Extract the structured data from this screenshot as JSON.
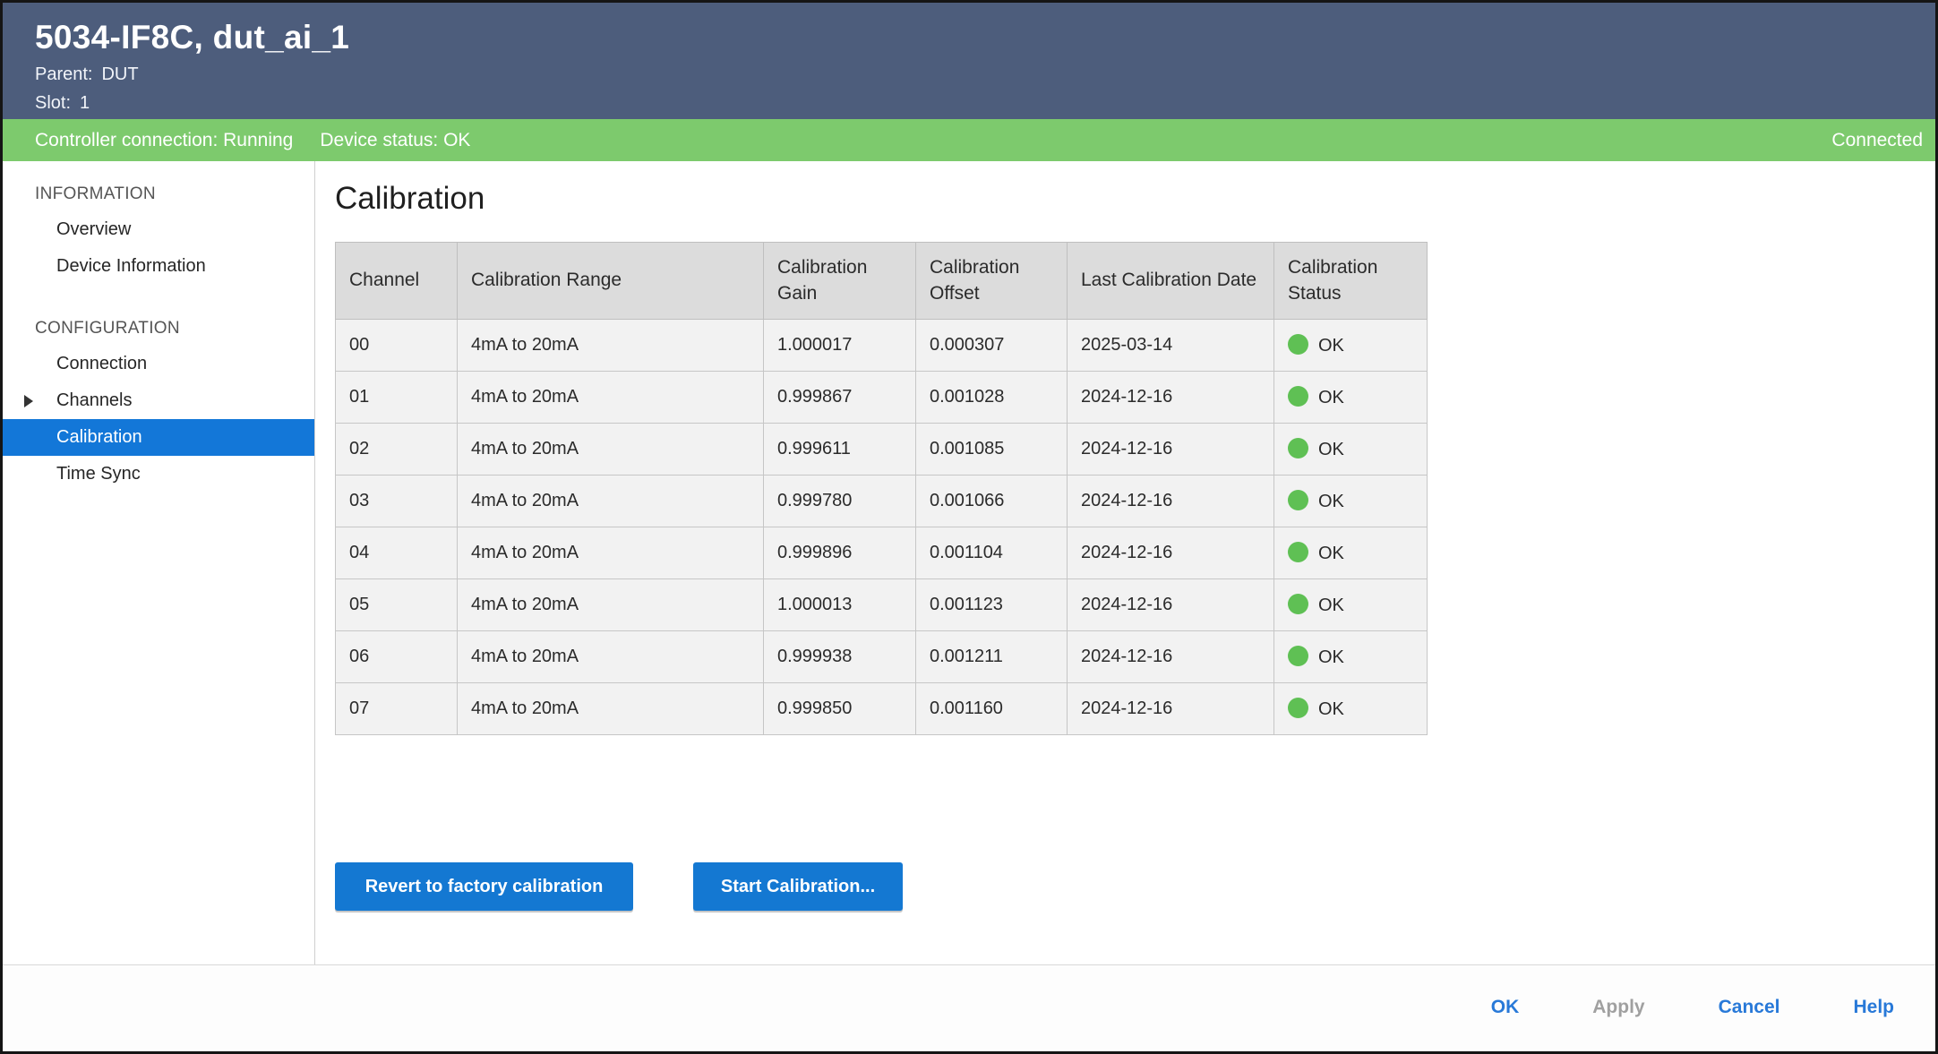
{
  "header": {
    "title": "5034-IF8C, dut_ai_1",
    "parent_label": "Parent:",
    "parent_value": "DUT",
    "slot_label": "Slot:",
    "slot_value": "1"
  },
  "status_bar": {
    "controller_connection": "Controller connection: Running",
    "device_status": "Device status: OK",
    "connection_state": "Connected"
  },
  "colors": {
    "header_bg": "#4d5d7c",
    "status_bar_green": "#7dca6d",
    "selected_item_blue": "#1377d8",
    "button_blue": "#1478d2",
    "status_dot_green": "#5fc054"
  },
  "sidebar": {
    "sections": [
      {
        "heading": "INFORMATION",
        "items": [
          {
            "label": "Overview"
          },
          {
            "label": "Device Information"
          }
        ]
      },
      {
        "heading": "CONFIGURATION",
        "items": [
          {
            "label": "Connection"
          },
          {
            "label": "Channels"
          },
          {
            "label": "Calibration"
          },
          {
            "label": "Time Sync"
          }
        ]
      }
    ]
  },
  "main": {
    "title": "Calibration",
    "table": {
      "columns": [
        "Channel",
        "Calibration Range",
        "Calibration Gain",
        "Calibration Offset",
        "Last Calibration Date",
        "Calibration Status"
      ],
      "rows": [
        {
          "channel": "00",
          "range": "4mA to 20mA",
          "gain": "1.000017",
          "offset": "0.000307",
          "date": "2025-03-14",
          "status": "OK"
        },
        {
          "channel": "01",
          "range": "4mA to 20mA",
          "gain": "0.999867",
          "offset": "0.001028",
          "date": "2024-12-16",
          "status": "OK"
        },
        {
          "channel": "02",
          "range": "4mA to 20mA",
          "gain": "0.999611",
          "offset": "0.001085",
          "date": "2024-12-16",
          "status": "OK"
        },
        {
          "channel": "03",
          "range": "4mA to 20mA",
          "gain": "0.999780",
          "offset": "0.001066",
          "date": "2024-12-16",
          "status": "OK"
        },
        {
          "channel": "04",
          "range": "4mA to 20mA",
          "gain": "0.999896",
          "offset": "0.001104",
          "date": "2024-12-16",
          "status": "OK"
        },
        {
          "channel": "05",
          "range": "4mA to 20mA",
          "gain": "1.000013",
          "offset": "0.001123",
          "date": "2024-12-16",
          "status": "OK"
        },
        {
          "channel": "06",
          "range": "4mA to 20mA",
          "gain": "0.999938",
          "offset": "0.001211",
          "date": "2024-12-16",
          "status": "OK"
        },
        {
          "channel": "07",
          "range": "4mA to 20mA",
          "gain": "0.999850",
          "offset": "0.001160",
          "date": "2024-12-16",
          "status": "OK"
        }
      ]
    },
    "buttons": [
      {
        "label": "Revert to factory calibration"
      },
      {
        "label": "Start Calibration..."
      }
    ]
  },
  "footer": {
    "actions": [
      {
        "label": "OK",
        "enabled": true
      },
      {
        "label": "Apply",
        "enabled": false
      },
      {
        "label": "Cancel",
        "enabled": true
      },
      {
        "label": "Help",
        "enabled": true
      }
    ]
  }
}
